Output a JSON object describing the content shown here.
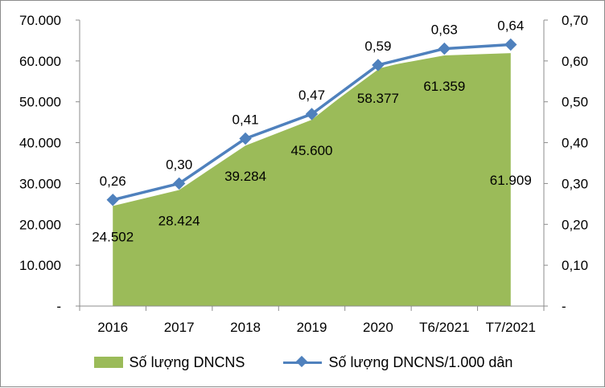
{
  "chart_data": {
    "type": "area+line",
    "categories": [
      "2016",
      "2017",
      "2018",
      "2019",
      "2020",
      "T6/2021",
      "T7/2021"
    ],
    "series": [
      {
        "name": "Số lượng DNCNS",
        "kind": "area",
        "axis": "left",
        "values": [
          24502,
          28424,
          39284,
          45600,
          58377,
          61359,
          61909
        ],
        "labels": [
          "24.502",
          "28.424",
          "39.284",
          "45.600",
          "58.377",
          "61.359",
          "61.909"
        ],
        "color": "#9bbb59"
      },
      {
        "name": "Số lượng DNCNS/1.000 dân",
        "kind": "line",
        "axis": "right",
        "values": [
          0.26,
          0.3,
          0.41,
          0.47,
          0.59,
          0.63,
          0.64
        ],
        "labels": [
          "0,26",
          "0,30",
          "0,41",
          "0,47",
          "0,59",
          "0,63",
          "0,64"
        ],
        "color": "#4f81bd"
      }
    ],
    "y_left": {
      "min": 0,
      "max": 70000,
      "ticks": [
        "-",
        "10.000",
        "20.000",
        "30.000",
        "40.000",
        "50.000",
        "60.000",
        "70.000"
      ]
    },
    "y_right": {
      "min": 0,
      "max": 0.7,
      "ticks": [
        "-",
        "0,10",
        "0,20",
        "0,30",
        "0,40",
        "0,50",
        "0,60",
        "0,70"
      ]
    },
    "grid": false,
    "legend_position": "bottom"
  }
}
